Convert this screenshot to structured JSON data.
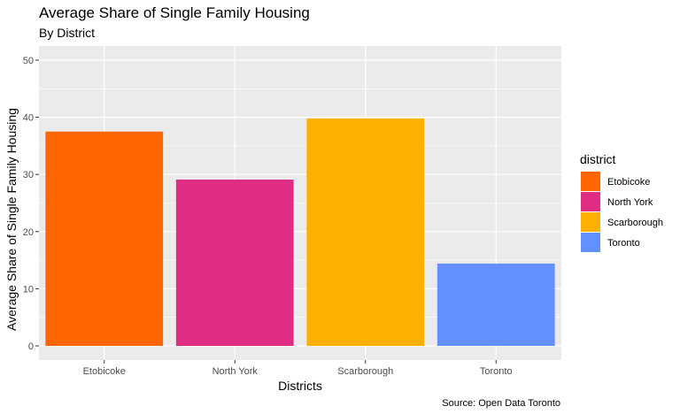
{
  "chart_data": {
    "type": "bar",
    "title": "Average Share of Single Family Housing",
    "subtitle": "By District",
    "xlabel": "Districts",
    "ylabel": "Average Share of Single Family Housing",
    "caption": "Source: Open Data Toronto",
    "categories": [
      "Etobicoke",
      "North York",
      "Scarborough",
      "Toronto"
    ],
    "values": [
      37.5,
      29.1,
      39.8,
      14.4
    ],
    "colors": [
      "#ff6600",
      "#de2d83",
      "#ffb000",
      "#648fff"
    ],
    "ylim": [
      0,
      50
    ],
    "yticks": [
      0,
      10,
      20,
      30,
      40,
      50
    ],
    "grid": true,
    "legend": {
      "title": "district",
      "position": "right",
      "entries": [
        "Etobicoke",
        "North York",
        "Scarborough",
        "Toronto"
      ]
    }
  }
}
